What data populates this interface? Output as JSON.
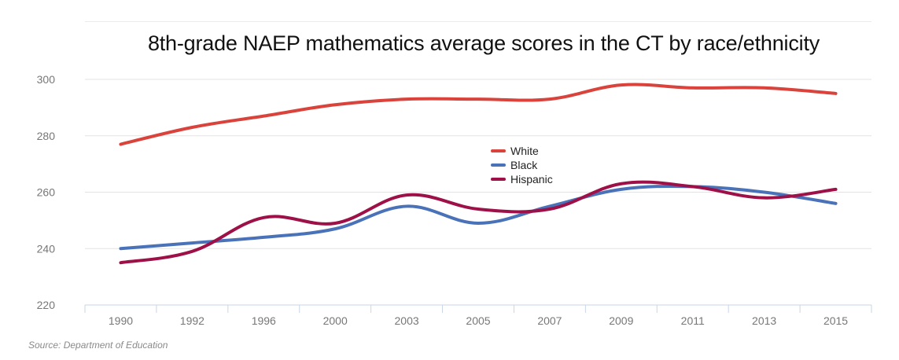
{
  "chart_data": {
    "type": "line",
    "title": "8th-grade NAEP mathematics average scores in the CT by race/ethnicity",
    "xlabel": "",
    "ylabel": "",
    "ylim": [
      220,
      300
    ],
    "yticks": [
      220,
      240,
      260,
      280,
      300
    ],
    "categories": [
      "1990",
      "1992",
      "1996",
      "2000",
      "2003",
      "2005",
      "2007",
      "2009",
      "2011",
      "2013",
      "2015"
    ],
    "series": [
      {
        "name": "White",
        "color": "#d9433b",
        "values": [
          277,
          283,
          287,
          291,
          293,
          293,
          293,
          298,
          297,
          297,
          295
        ]
      },
      {
        "name": "Black",
        "color": "#4a72b8",
        "values": [
          240,
          242,
          244,
          247,
          255,
          249,
          255,
          261,
          262,
          260,
          256
        ]
      },
      {
        "name": "Hispanic",
        "color": "#9e1048",
        "values": [
          235,
          239,
          251,
          249,
          259,
          254,
          254,
          263,
          262,
          258,
          261
        ]
      }
    ],
    "legend_position": "center"
  },
  "source": "Source: Department of Education"
}
